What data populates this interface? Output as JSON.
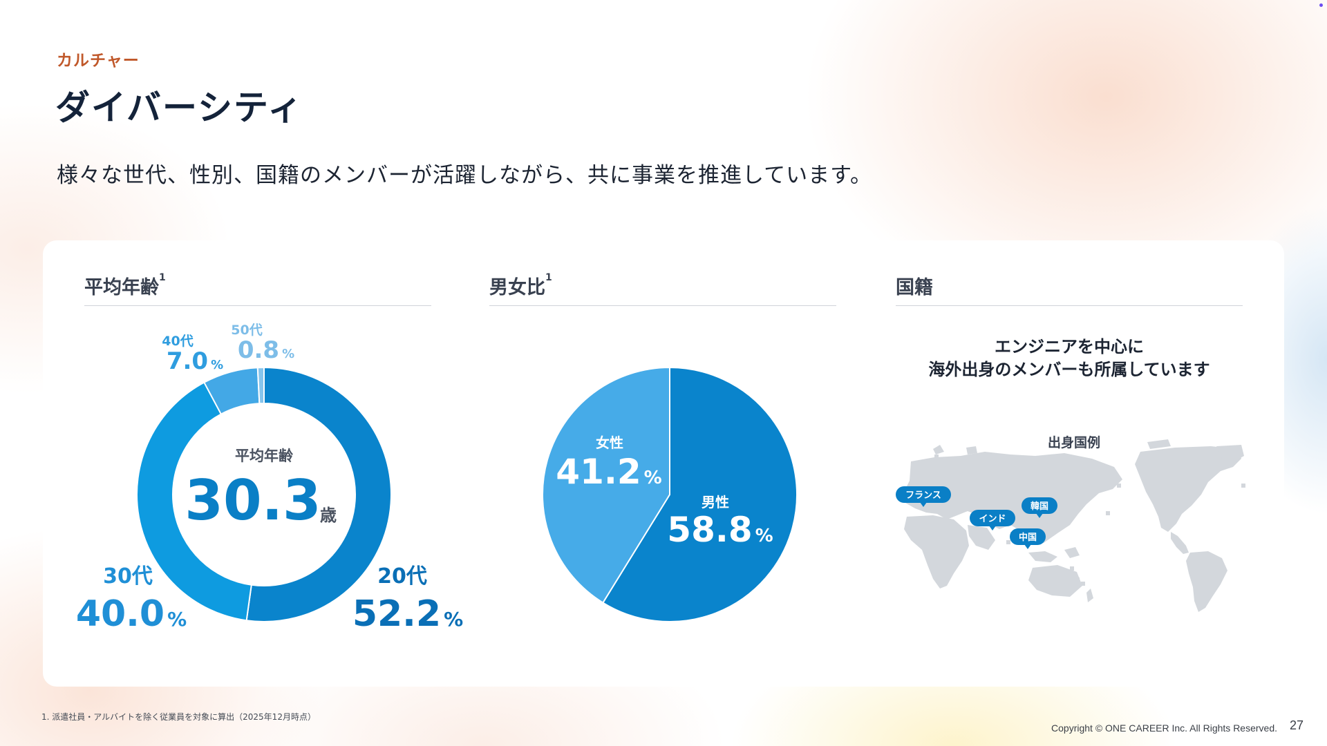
{
  "header": {
    "eyebrow": "カルチャー",
    "title": "ダイバーシティ",
    "lead": "様々な世代、性別、国籍のメンバーが活躍しながら、共に事業を推進しています。"
  },
  "panels": {
    "age": {
      "heading": "平均年齢",
      "note": "1"
    },
    "gender": {
      "heading": "男女比",
      "note": "1"
    },
    "nationality": {
      "heading": "国籍",
      "message_line1": "エンジニアを中心に",
      "message_line2": "海外出身のメンバーも所属しています",
      "map_title": "出身国例",
      "countries": [
        "フランス",
        "インド",
        "韓国",
        "中国"
      ]
    }
  },
  "chart_data": [
    {
      "type": "pie",
      "variant": "donut",
      "title": "平均年齢",
      "center_label": "平均年齢",
      "center_value": "30.3",
      "center_unit": "歳",
      "unit": "%",
      "slices": [
        {
          "label": "20代",
          "value": 52.2,
          "display": "52.2",
          "color": "#0a84cc"
        },
        {
          "label": "30代",
          "value": 40.0,
          "display": "40.0",
          "color": "#0e9be0"
        },
        {
          "label": "40代",
          "value": 7.0,
          "display": "7.0",
          "color": "#43a8e6"
        },
        {
          "label": "50代",
          "value": 0.8,
          "display": "0.8",
          "color": "#86c4ec"
        }
      ]
    },
    {
      "type": "pie",
      "title": "男女比",
      "unit": "%",
      "slices": [
        {
          "label": "男性",
          "value": 58.8,
          "display": "58.8",
          "color": "#0a84cc"
        },
        {
          "label": "女性",
          "value": 41.2,
          "display": "41.2",
          "color": "#46abe8"
        }
      ]
    }
  ],
  "footer": {
    "footnote": "1. 派遣社員・アルバイトを除く従業員を対象に算出（2025年12月時点）",
    "copyright": "Copyright © ONE CAREER Inc. All Rights Reserved.",
    "page": "27"
  }
}
